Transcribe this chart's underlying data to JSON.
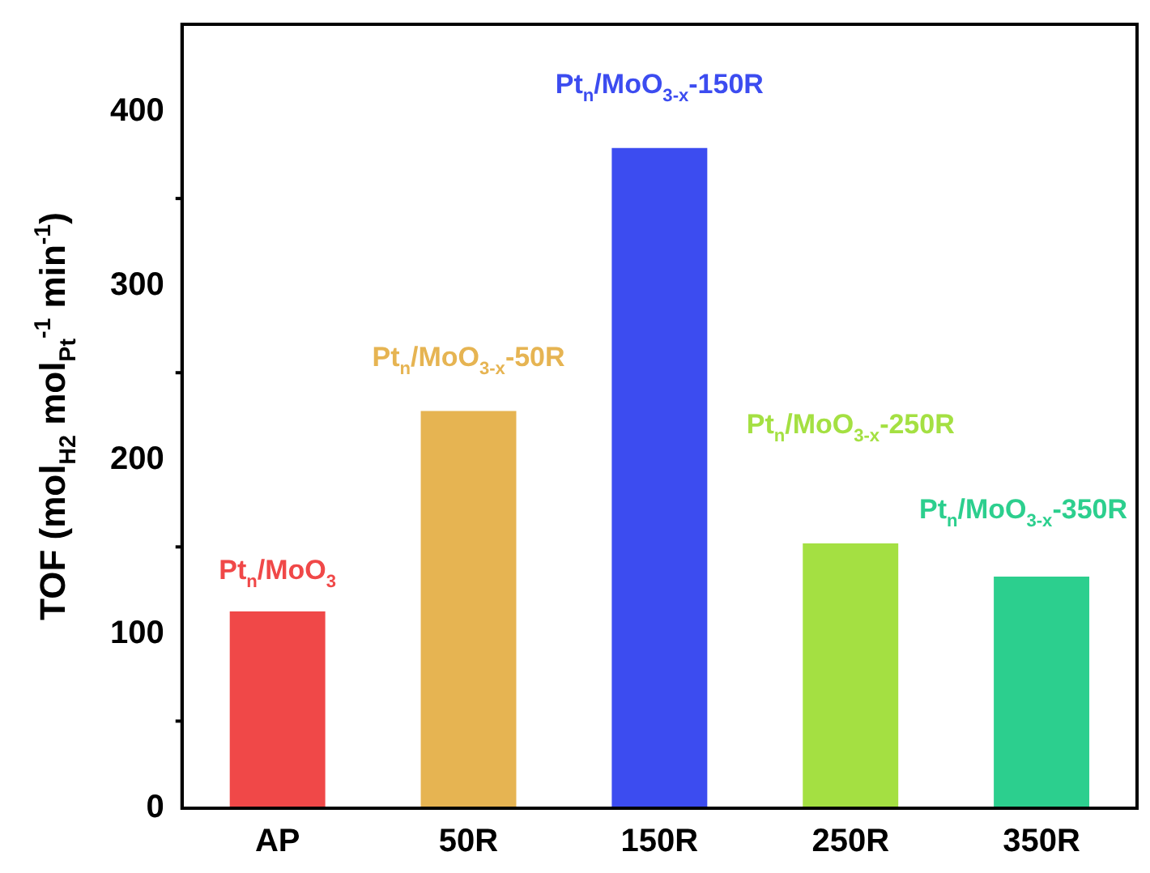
{
  "chart_data": {
    "type": "bar",
    "ylabel": "TOF (mol$_{H2}$ mol$_{Pt}$$^{-1}$ min$^{-1}$)",
    "categories": [
      "AP",
      "50R",
      "150R",
      "250R",
      "350R"
    ],
    "values": [
      113,
      228,
      379,
      152,
      133
    ],
    "colors": [
      "#f04848",
      "#e6b452",
      "#3c4cf0",
      "#a4e042",
      "#2ccf8e"
    ],
    "ylim": [
      0,
      450
    ],
    "yticks": [
      0,
      100,
      200,
      300,
      400
    ],
    "grid": false,
    "legend": false,
    "annotations": [
      "Pt$_{n}$/MoO$_{3}$",
      "Pt$_{n}$/MoO$_{3-x}$-50R",
      "Pt$_{n}$/MoO$_{3-x}$-150R",
      "Pt$_{n}$/MoO$_{3-x}$-250R",
      "Pt$_{n}$/MoO$_{3-x}$-350R"
    ]
  }
}
